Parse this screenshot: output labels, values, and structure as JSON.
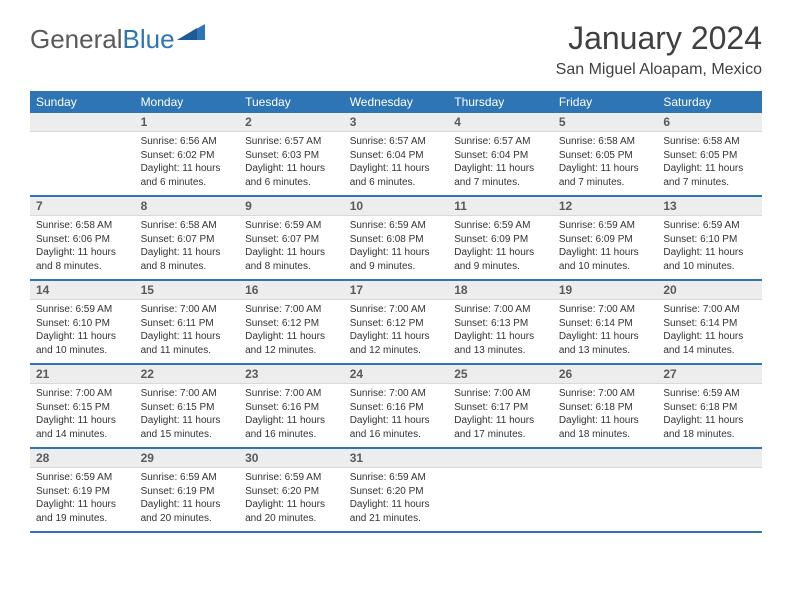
{
  "logo": {
    "text_gray": "General",
    "text_blue": "Blue"
  },
  "title": "January 2024",
  "location": "San Miguel Aloapam, Mexico",
  "colors": {
    "header_bg": "#2e75b6",
    "header_text": "#ffffff",
    "daynum_bg": "#ededed",
    "daynum_text": "#5a5a5a",
    "row_divider": "#2e75b6",
    "body_text": "#333333",
    "title_text": "#404040"
  },
  "day_headers": [
    "Sunday",
    "Monday",
    "Tuesday",
    "Wednesday",
    "Thursday",
    "Friday",
    "Saturday"
  ],
  "weeks": [
    {
      "nums": [
        "",
        "1",
        "2",
        "3",
        "4",
        "5",
        "6"
      ],
      "cells": [
        [],
        [
          "Sunrise: 6:56 AM",
          "Sunset: 6:02 PM",
          "Daylight: 11 hours",
          "and 6 minutes."
        ],
        [
          "Sunrise: 6:57 AM",
          "Sunset: 6:03 PM",
          "Daylight: 11 hours",
          "and 6 minutes."
        ],
        [
          "Sunrise: 6:57 AM",
          "Sunset: 6:04 PM",
          "Daylight: 11 hours",
          "and 6 minutes."
        ],
        [
          "Sunrise: 6:57 AM",
          "Sunset: 6:04 PM",
          "Daylight: 11 hours",
          "and 7 minutes."
        ],
        [
          "Sunrise: 6:58 AM",
          "Sunset: 6:05 PM",
          "Daylight: 11 hours",
          "and 7 minutes."
        ],
        [
          "Sunrise: 6:58 AM",
          "Sunset: 6:05 PM",
          "Daylight: 11 hours",
          "and 7 minutes."
        ]
      ]
    },
    {
      "nums": [
        "7",
        "8",
        "9",
        "10",
        "11",
        "12",
        "13"
      ],
      "cells": [
        [
          "Sunrise: 6:58 AM",
          "Sunset: 6:06 PM",
          "Daylight: 11 hours",
          "and 8 minutes."
        ],
        [
          "Sunrise: 6:58 AM",
          "Sunset: 6:07 PM",
          "Daylight: 11 hours",
          "and 8 minutes."
        ],
        [
          "Sunrise: 6:59 AM",
          "Sunset: 6:07 PM",
          "Daylight: 11 hours",
          "and 8 minutes."
        ],
        [
          "Sunrise: 6:59 AM",
          "Sunset: 6:08 PM",
          "Daylight: 11 hours",
          "and 9 minutes."
        ],
        [
          "Sunrise: 6:59 AM",
          "Sunset: 6:09 PM",
          "Daylight: 11 hours",
          "and 9 minutes."
        ],
        [
          "Sunrise: 6:59 AM",
          "Sunset: 6:09 PM",
          "Daylight: 11 hours",
          "and 10 minutes."
        ],
        [
          "Sunrise: 6:59 AM",
          "Sunset: 6:10 PM",
          "Daylight: 11 hours",
          "and 10 minutes."
        ]
      ]
    },
    {
      "nums": [
        "14",
        "15",
        "16",
        "17",
        "18",
        "19",
        "20"
      ],
      "cells": [
        [
          "Sunrise: 6:59 AM",
          "Sunset: 6:10 PM",
          "Daylight: 11 hours",
          "and 10 minutes."
        ],
        [
          "Sunrise: 7:00 AM",
          "Sunset: 6:11 PM",
          "Daylight: 11 hours",
          "and 11 minutes."
        ],
        [
          "Sunrise: 7:00 AM",
          "Sunset: 6:12 PM",
          "Daylight: 11 hours",
          "and 12 minutes."
        ],
        [
          "Sunrise: 7:00 AM",
          "Sunset: 6:12 PM",
          "Daylight: 11 hours",
          "and 12 minutes."
        ],
        [
          "Sunrise: 7:00 AM",
          "Sunset: 6:13 PM",
          "Daylight: 11 hours",
          "and 13 minutes."
        ],
        [
          "Sunrise: 7:00 AM",
          "Sunset: 6:14 PM",
          "Daylight: 11 hours",
          "and 13 minutes."
        ],
        [
          "Sunrise: 7:00 AM",
          "Sunset: 6:14 PM",
          "Daylight: 11 hours",
          "and 14 minutes."
        ]
      ]
    },
    {
      "nums": [
        "21",
        "22",
        "23",
        "24",
        "25",
        "26",
        "27"
      ],
      "cells": [
        [
          "Sunrise: 7:00 AM",
          "Sunset: 6:15 PM",
          "Daylight: 11 hours",
          "and 14 minutes."
        ],
        [
          "Sunrise: 7:00 AM",
          "Sunset: 6:15 PM",
          "Daylight: 11 hours",
          "and 15 minutes."
        ],
        [
          "Sunrise: 7:00 AM",
          "Sunset: 6:16 PM",
          "Daylight: 11 hours",
          "and 16 minutes."
        ],
        [
          "Sunrise: 7:00 AM",
          "Sunset: 6:16 PM",
          "Daylight: 11 hours",
          "and 16 minutes."
        ],
        [
          "Sunrise: 7:00 AM",
          "Sunset: 6:17 PM",
          "Daylight: 11 hours",
          "and 17 minutes."
        ],
        [
          "Sunrise: 7:00 AM",
          "Sunset: 6:18 PM",
          "Daylight: 11 hours",
          "and 18 minutes."
        ],
        [
          "Sunrise: 6:59 AM",
          "Sunset: 6:18 PM",
          "Daylight: 11 hours",
          "and 18 minutes."
        ]
      ]
    },
    {
      "nums": [
        "28",
        "29",
        "30",
        "31",
        "",
        "",
        ""
      ],
      "cells": [
        [
          "Sunrise: 6:59 AM",
          "Sunset: 6:19 PM",
          "Daylight: 11 hours",
          "and 19 minutes."
        ],
        [
          "Sunrise: 6:59 AM",
          "Sunset: 6:19 PM",
          "Daylight: 11 hours",
          "and 20 minutes."
        ],
        [
          "Sunrise: 6:59 AM",
          "Sunset: 6:20 PM",
          "Daylight: 11 hours",
          "and 20 minutes."
        ],
        [
          "Sunrise: 6:59 AM",
          "Sunset: 6:20 PM",
          "Daylight: 11 hours",
          "and 21 minutes."
        ],
        [],
        [],
        []
      ]
    }
  ]
}
